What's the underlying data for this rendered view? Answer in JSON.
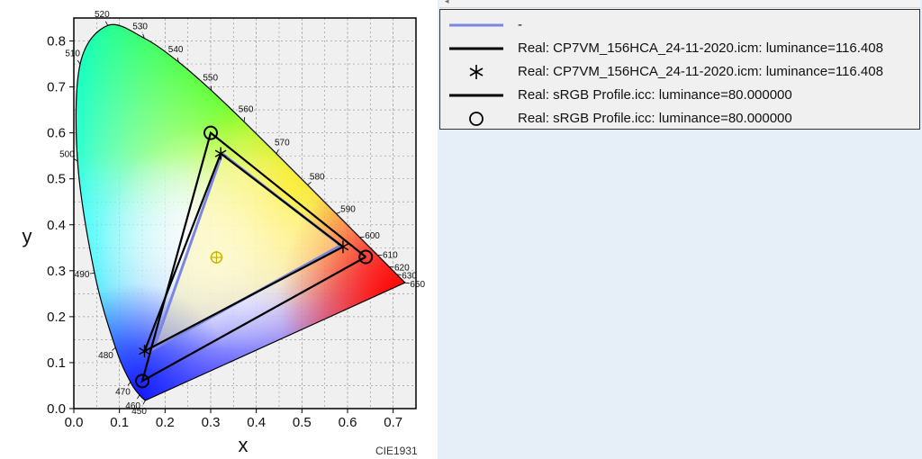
{
  "chart_data": {
    "type": "scatter",
    "title": "",
    "xlabel": "x",
    "ylabel": "y",
    "xlim": [
      0,
      0.75
    ],
    "ylim": [
      0,
      0.85
    ],
    "x_ticks": [
      "0.0",
      "0.1",
      "0.2",
      "0.3",
      "0.4",
      "0.5",
      "0.6",
      "0.7"
    ],
    "y_ticks": [
      "0.0",
      "0.1",
      "0.2",
      "0.3",
      "0.4",
      "0.5",
      "0.6",
      "0.7",
      "0.8"
    ],
    "grid": true,
    "legend_position": "right",
    "spectral_locus": [
      {
        "nm": "450",
        "x": 0.1566,
        "y": 0.0177
      },
      {
        "nm": "460",
        "x": 0.144,
        "y": 0.0297
      },
      {
        "nm": "470",
        "x": 0.1241,
        "y": 0.0578
      },
      {
        "nm": "480",
        "x": 0.0913,
        "y": 0.1327
      },
      {
        "nm": "490",
        "x": 0.0454,
        "y": 0.295
      },
      {
        "nm": "500",
        "x": 0.0082,
        "y": 0.5384
      },
      {
        "nm": "510",
        "x": 0.0139,
        "y": 0.7502
      },
      {
        "nm": "520",
        "x": 0.0743,
        "y": 0.8338
      },
      {
        "nm": "530",
        "x": 0.1547,
        "y": 0.8059
      },
      {
        "nm": "540",
        "x": 0.2296,
        "y": 0.7543
      },
      {
        "nm": "550",
        "x": 0.3016,
        "y": 0.6923
      },
      {
        "nm": "560",
        "x": 0.3731,
        "y": 0.6245
      },
      {
        "nm": "570",
        "x": 0.4441,
        "y": 0.5547
      },
      {
        "nm": "580",
        "x": 0.5125,
        "y": 0.4866
      },
      {
        "nm": "590",
        "x": 0.5752,
        "y": 0.4242
      },
      {
        "nm": "600",
        "x": 0.627,
        "y": 0.3725
      },
      {
        "nm": "610",
        "x": 0.6658,
        "y": 0.334
      },
      {
        "nm": "620",
        "x": 0.6915,
        "y": 0.3083
      },
      {
        "nm": "630",
        "x": 0.7079,
        "y": 0.292
      },
      {
        "nm": "650",
        "x": 0.726,
        "y": 0.274
      }
    ],
    "series": [
      {
        "name": "-",
        "color": "#7b86e0",
        "points": [
          [
            0.585,
            0.355
          ],
          [
            0.325,
            0.555
          ],
          [
            0.175,
            0.13
          ],
          [
            0.585,
            0.355
          ]
        ]
      },
      {
        "name": "Real: CP7VM_156HCA_24-11-2020.icm: luminance=116.408",
        "color": "#000000",
        "points": [
          [
            0.59,
            0.352
          ],
          [
            0.322,
            0.555
          ],
          [
            0.155,
            0.125
          ],
          [
            0.59,
            0.352
          ]
        ]
      },
      {
        "name": "Real: CP7VM_156HCA_24-11-2020.icm: luminance=116.408",
        "color": "#000000",
        "marker": "asterisk",
        "points": [
          [
            0.59,
            0.352
          ],
          [
            0.322,
            0.555
          ],
          [
            0.155,
            0.125
          ]
        ]
      },
      {
        "name": "Real: sRGB Profile.icc: luminance=80.000000",
        "color": "#000000",
        "points": [
          [
            0.64,
            0.33
          ],
          [
            0.3,
            0.6
          ],
          [
            0.15,
            0.06
          ],
          [
            0.64,
            0.33
          ]
        ]
      },
      {
        "name": "Real: sRGB Profile.icc: luminance=80.000000",
        "color": "#000000",
        "marker": "circle",
        "points": [
          [
            0.64,
            0.33
          ],
          [
            0.3,
            0.6
          ],
          [
            0.15,
            0.06
          ]
        ]
      }
    ],
    "white_point": {
      "x": 0.3127,
      "y": 0.329
    },
    "annotation": "CIE1931"
  },
  "legend": {
    "items": [
      {
        "label": "-",
        "symbol": "line",
        "color": "#7b86e0"
      },
      {
        "label": "Real: CP7VM_156HCA_24-11-2020.icm: luminance=116.408",
        "symbol": "line",
        "color": "#000000"
      },
      {
        "label": "Real: CP7VM_156HCA_24-11-2020.icm: luminance=116.408",
        "symbol": "asterisk",
        "color": "#000000"
      },
      {
        "label": "Real: sRGB Profile.icc: luminance=80.000000",
        "symbol": "line",
        "color": "#000000"
      },
      {
        "label": "Real: sRGB Profile.icc: luminance=80.000000",
        "symbol": "circle",
        "color": "#000000"
      }
    ]
  },
  "colors": {
    "plot_bg": "#f0f0f0",
    "grid": "#9a9a9a",
    "pane_bg": "#e6eef8"
  }
}
